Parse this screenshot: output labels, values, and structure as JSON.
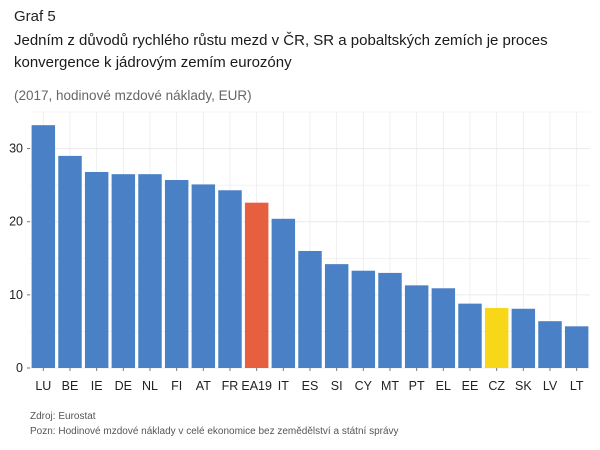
{
  "header": {
    "kicker": "Graf 5",
    "title": "Jedním z důvodů rychlého růstu mezd v ČR, SR a pobaltských zemích je proces konvergence k jádrovým zemím eurozóny",
    "subtitle": "(2017, hodinové mzdové náklady, EUR)"
  },
  "footer": {
    "source": "Zdroj: Eurostat",
    "note": "Pozn: Hodinové mzdové náklady v celé ekonomice bez zemědělství a státní správy"
  },
  "colors": {
    "default": "#4a80c6",
    "ea19": "#e65f3f",
    "cz": "#f7d718",
    "grid": "#ececec",
    "axis": "#777777",
    "tick_text": "#222222"
  },
  "chart_data": {
    "type": "bar",
    "categories": [
      "LU",
      "BE",
      "IE",
      "DE",
      "NL",
      "FI",
      "AT",
      "FR",
      "EA19",
      "IT",
      "ES",
      "SI",
      "CY",
      "MT",
      "PT",
      "EL",
      "EE",
      "CZ",
      "SK",
      "LV",
      "LT"
    ],
    "values": [
      33.2,
      29.0,
      26.8,
      26.5,
      26.5,
      25.7,
      25.1,
      24.3,
      22.6,
      20.4,
      16.0,
      14.2,
      13.3,
      13.0,
      11.3,
      10.9,
      8.8,
      8.2,
      8.1,
      6.4,
      5.7
    ],
    "ylim": [
      0,
      35
    ],
    "yticks": [
      0,
      10,
      20,
      30
    ],
    "highlight": {
      "EA19": "ea19",
      "CZ": "cz"
    },
    "grid": true
  }
}
